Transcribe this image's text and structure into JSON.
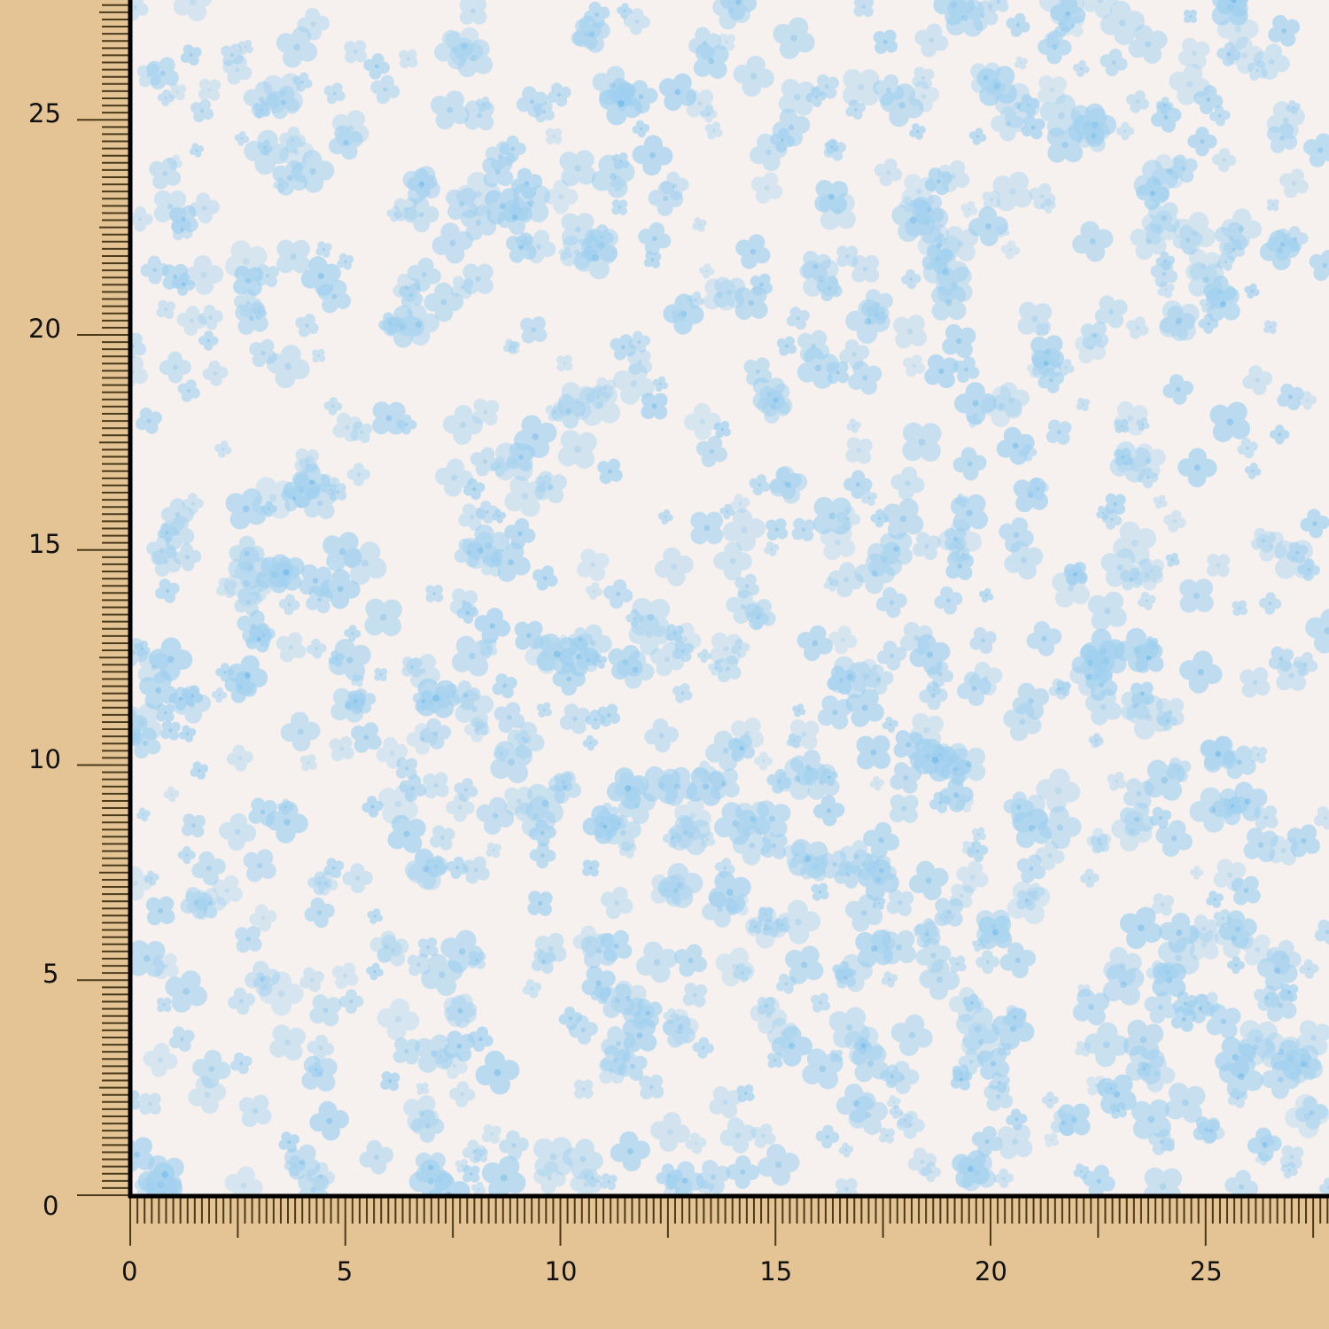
{
  "swatch": {
    "pattern": "small blue watercolor flowers on off-white fabric",
    "colors": {
      "background": "#e4c395",
      "fabric": "#f6f1ef",
      "flower": "#9fd0f0",
      "flower_center": "#6bb8ea",
      "ruler_ticks": "#4a3a1a"
    }
  },
  "x_ruler": {
    "labels": [
      "0",
      "5",
      "10",
      "15",
      "20",
      "25"
    ]
  },
  "y_ruler": {
    "labels": [
      "0",
      "5",
      "10",
      "15",
      "20",
      "25"
    ]
  }
}
